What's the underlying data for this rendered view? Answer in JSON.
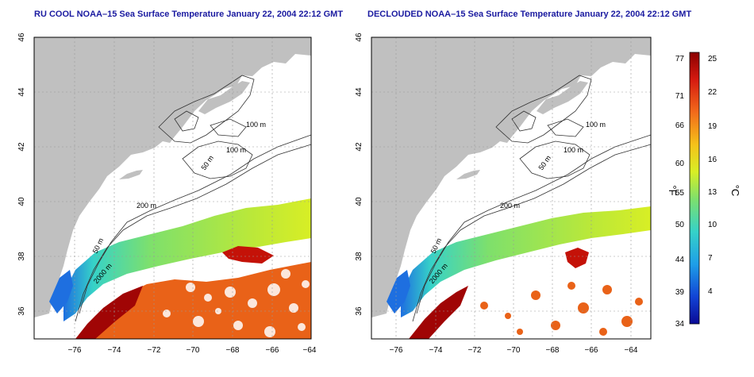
{
  "left_map": {
    "title": "RU COOL NOAA–15 Sea Surface Temperature January 22, 2004 22:12 GMT"
  },
  "right_map": {
    "title": "DECLOUDED NOAA–15 Sea Surface Temperature January 22, 2004 22:12 GMT"
  },
  "axes": {
    "lat_ticks": [
      "46",
      "44",
      "42",
      "40",
      "38",
      "36"
    ],
    "lon_ticks": [
      "−76",
      "−74",
      "−72",
      "−70",
      "−68",
      "−66",
      "−64"
    ]
  },
  "contours": {
    "labels": [
      "100 m",
      "100 m",
      "50 m",
      "200 m",
      "50 m",
      "2000 m"
    ]
  },
  "colorbar": {
    "fahrenheit_label": "°F",
    "celsius_label": "°C",
    "fahrenheit_ticks": [
      "77",
      "71",
      "66",
      "60",
      "55",
      "50",
      "44",
      "39",
      "34"
    ],
    "celsius_ticks": [
      "25",
      "22",
      "19",
      "16",
      "13",
      "10",
      "7",
      "4"
    ],
    "gradient_colors": [
      "#8b0000",
      "#d61a10",
      "#f26a1b",
      "#f5c21a",
      "#d8ee25",
      "#7ee06c",
      "#36d2c8",
      "#1e9fe8",
      "#1244d6",
      "#0a0a96"
    ]
  },
  "colors": {
    "land": "#c0c0c0",
    "ocean": "#ffffff",
    "title_text": "#1a1aa0",
    "contour": "#333333",
    "grid": "#999999"
  }
}
